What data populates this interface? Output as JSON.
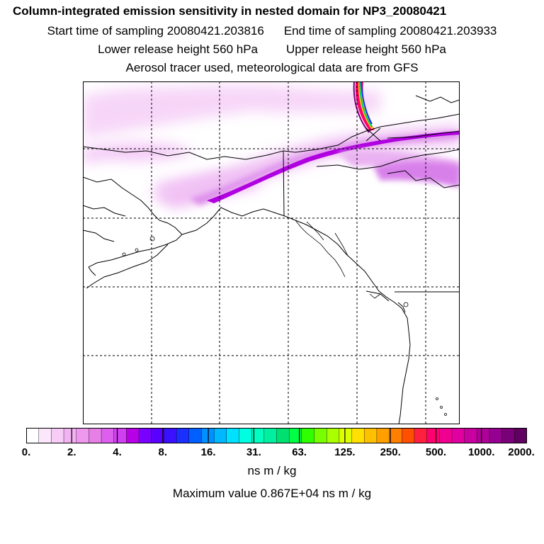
{
  "title": "Column-integrated emission sensitivity in nested domain for NP3_20080421",
  "sampling": {
    "start": "Start time of sampling 20080421.203816",
    "end": "End time of sampling 20080421.203933"
  },
  "release": {
    "lower": "Lower release height  560 hPa",
    "upper": "Upper release height  560 hPa"
  },
  "tracer_note": "Aerosol tracer used, meteorological data are from GFS",
  "colorbar": {
    "tick_labels": [
      "0.",
      "2.",
      "4.",
      "8.",
      "16.",
      "31.",
      "63.",
      "125.",
      "250.",
      "500.",
      "1000.",
      "2000."
    ],
    "units": "ns m / kg",
    "colors": [
      "#ffffff",
      "#fbe6fb",
      "#f7cdf7",
      "#f2b3f2",
      "#ee99ee",
      "#e680e6",
      "#dd5fee",
      "#d03ff0",
      "#b800e6",
      "#7a00ff",
      "#5a00ff",
      "#3a10ff",
      "#1a30ff",
      "#0060ff",
      "#0090ff",
      "#00b8ff",
      "#00e0ff",
      "#00ffe0",
      "#00ffc0",
      "#00f0a0",
      "#00e070",
      "#00ff44",
      "#30ff00",
      "#77ff00",
      "#aaff00",
      "#ddff00",
      "#ffe000",
      "#ffc000",
      "#ffa000",
      "#ff8000",
      "#ff5000",
      "#ff2040",
      "#ff0070",
      "#f00090",
      "#e000a0",
      "#c800a0",
      "#b0009a",
      "#950090",
      "#7a0078",
      "#600060"
    ]
  },
  "maximum": "Maximum value  0.867E+04 ns m / kg",
  "colors": {
    "plume_light": "#f2c6f5",
    "plume_mid": "#d98ce8",
    "plume_core": "#b000e0"
  }
}
